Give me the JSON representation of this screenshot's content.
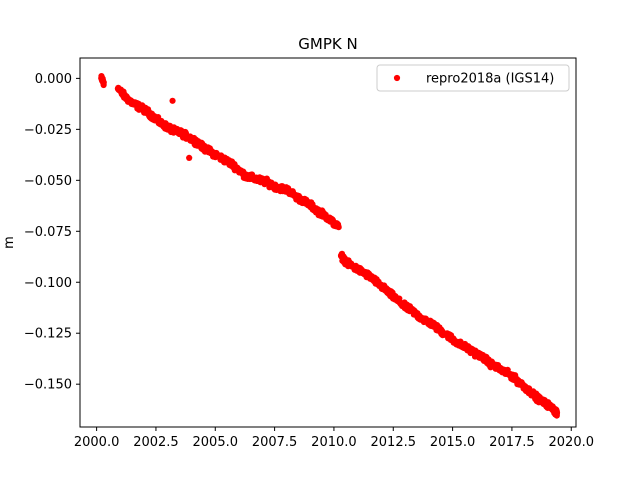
{
  "chart_data": {
    "type": "scatter",
    "title": "GMPK N",
    "xlabel": "",
    "ylabel": "m",
    "xlim": [
      1999.3,
      2020.2
    ],
    "ylim": [
      -0.171,
      0.01
    ],
    "xticks": [
      2000.0,
      2002.5,
      2005.0,
      2007.5,
      2010.0,
      2012.5,
      2015.0,
      2017.5,
      2020.0
    ],
    "xtick_labels": [
      "2000.0",
      "2002.5",
      "2005.0",
      "2007.5",
      "2010.0",
      "2012.5",
      "2015.0",
      "2017.5",
      "2020.0"
    ],
    "yticks": [
      0.0,
      -0.025,
      -0.05,
      -0.075,
      -0.1,
      -0.125,
      -0.15
    ],
    "ytick_labels": [
      "0.000",
      "−0.025",
      "−0.050",
      "−0.075",
      "−0.100",
      "−0.125",
      "−0.150"
    ],
    "grid": false,
    "legend_position": "top-right",
    "series": [
      {
        "name": "repro2018a (IGS14)",
        "color": "#ff0000",
        "marker": "circle",
        "x": [
          2000.2,
          2000.3,
          2000.9,
          2001.2,
          2001.5,
          2001.8,
          2002.1,
          2002.4,
          2002.7,
          2003.0,
          2003.3,
          2003.6,
          2003.9,
          2004.2,
          2004.5,
          2004.8,
          2005.1,
          2005.4,
          2005.7,
          2006.0,
          2006.3,
          2006.6,
          2006.9,
          2007.2,
          2007.5,
          2007.8,
          2008.1,
          2008.4,
          2008.7,
          2009.0,
          2009.3,
          2009.6,
          2009.9,
          2010.2,
          2010.3,
          2010.6,
          2010.9,
          2011.2,
          2011.5,
          2011.8,
          2012.1,
          2012.4,
          2012.7,
          2013.0,
          2013.3,
          2013.6,
          2013.9,
          2014.2,
          2014.5,
          2014.8,
          2015.1,
          2015.4,
          2015.7,
          2016.0,
          2016.3,
          2016.6,
          2016.9,
          2017.2,
          2017.5,
          2017.8,
          2018.1,
          2018.4,
          2018.7,
          2019.0,
          2019.3,
          2019.4,
          2003.2,
          2003.9
        ],
        "y": [
          0.0,
          -0.002,
          -0.005,
          -0.009,
          -0.012,
          -0.014,
          -0.016,
          -0.019,
          -0.022,
          -0.024,
          -0.026,
          -0.027,
          -0.029,
          -0.031,
          -0.034,
          -0.036,
          -0.038,
          -0.04,
          -0.042,
          -0.045,
          -0.048,
          -0.049,
          -0.05,
          -0.051,
          -0.053,
          -0.054,
          -0.055,
          -0.058,
          -0.06,
          -0.062,
          -0.065,
          -0.067,
          -0.07,
          -0.073,
          -0.087,
          -0.091,
          -0.093,
          -0.095,
          -0.097,
          -0.1,
          -0.103,
          -0.106,
          -0.109,
          -0.112,
          -0.114,
          -0.117,
          -0.119,
          -0.121,
          -0.124,
          -0.126,
          -0.129,
          -0.131,
          -0.133,
          -0.135,
          -0.137,
          -0.14,
          -0.142,
          -0.144,
          -0.146,
          -0.149,
          -0.152,
          -0.155,
          -0.158,
          -0.16,
          -0.163,
          -0.164,
          -0.011,
          -0.039
        ]
      }
    ]
  }
}
